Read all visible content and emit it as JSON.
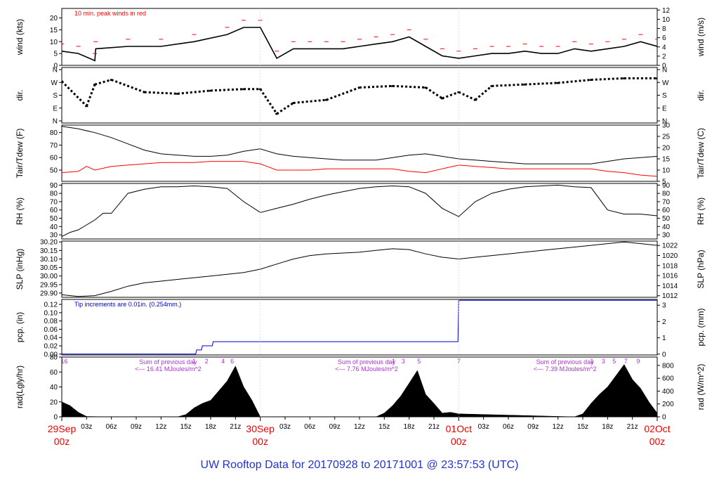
{
  "title": "UW Rooftop Data for 20170928  to  20171001 @ 23:57:53  (UTC)",
  "colors": {
    "frame": "#000000",
    "data": "#000000",
    "wind_peak": "#ff0000",
    "dewpoint": "#ff0000",
    "precip": "#0000cc",
    "radiation_labels": "#aa33cc",
    "date_labels": "#ee0000",
    "title": "#2233cc"
  },
  "time_axis": {
    "hour_ticks": [
      "03z",
      "06z",
      "09z",
      "12z",
      "15z",
      "18z",
      "21z"
    ],
    "days": [
      {
        "top": "29Sep",
        "bottom": "00z"
      },
      {
        "top": "30Sep",
        "bottom": "00z"
      },
      {
        "top": "01Oct",
        "bottom": "00z"
      },
      {
        "top": "02Oct",
        "bottom": "00z"
      }
    ]
  },
  "chart_data": [
    {
      "type": "line",
      "id": "wind",
      "ylabel_left": "wind (kts)",
      "ylabel_right": "wind (m/s)",
      "left_ticks": [
        "0",
        "5",
        "10",
        "15",
        "20"
      ],
      "right_ticks": [
        "0",
        "2",
        "4",
        "6",
        "8",
        "10",
        "12"
      ],
      "ylim": [
        0,
        24
      ],
      "annotation": "10 min. peak winds in red",
      "series": [
        {
          "name": "wind speed",
          "x_hours": [
            0,
            2,
            4,
            4.1,
            8,
            12,
            16,
            20,
            22,
            24,
            26,
            28,
            30,
            32,
            34,
            36,
            38,
            40,
            42,
            44,
            46,
            48,
            50,
            52,
            54,
            56,
            58,
            60,
            62,
            64,
            66,
            68,
            70,
            72
          ],
          "values": [
            6,
            5,
            2,
            7,
            8,
            8,
            10,
            13,
            16,
            16,
            3,
            7,
            7,
            7,
            7,
            8,
            9,
            10,
            12,
            8,
            4,
            3,
            4,
            5,
            5,
            6,
            5,
            5,
            7,
            6,
            7,
            8,
            10,
            8
          ]
        }
      ]
    },
    {
      "type": "scatter",
      "id": "dir",
      "ylabel_left": "dir.",
      "ylabel_right": "dir.",
      "left_ticks": [
        "N",
        "E",
        "S",
        "W",
        "N"
      ],
      "right_ticks": [
        "N",
        "E",
        "S",
        "W",
        "N"
      ],
      "ylim": [
        0,
        360
      ],
      "series": [
        {
          "name": "wind direction",
          "x_hours": [
            0,
            3,
            4,
            6,
            10,
            14,
            18,
            22,
            24,
            26,
            28,
            32,
            36,
            40,
            44,
            46,
            48,
            50,
            52,
            56,
            60,
            64,
            68,
            72
          ],
          "values": [
            270,
            110,
            250,
            280,
            200,
            190,
            210,
            220,
            220,
            60,
            130,
            150,
            230,
            240,
            230,
            160,
            200,
            150,
            240,
            250,
            260,
            280,
            290,
            290
          ]
        }
      ]
    },
    {
      "type": "line",
      "id": "temp",
      "ylabel_left": "Tair/Tdew (F)",
      "ylabel_right": "Tair/Tdew (C)",
      "left_ticks": [
        "50",
        "60",
        "70",
        "80"
      ],
      "right_ticks": [
        "5",
        "10",
        "15",
        "20",
        "25",
        "30"
      ],
      "ylim": [
        41,
        86
      ],
      "series": [
        {
          "name": "air temperature",
          "x_hours": [
            0,
            2,
            4,
            6,
            8,
            10,
            12,
            14,
            16,
            18,
            20,
            22,
            24,
            26,
            28,
            30,
            32,
            34,
            36,
            38,
            40,
            42,
            44,
            46,
            48,
            50,
            52,
            54,
            56,
            58,
            60,
            62,
            64,
            66,
            68,
            70,
            72
          ],
          "values": [
            85,
            83,
            80,
            76,
            71,
            66,
            63,
            62,
            61,
            61,
            62,
            65,
            67,
            63,
            61,
            60,
            59,
            58,
            58,
            58,
            60,
            62,
            63,
            61,
            59,
            58,
            57,
            56,
            55,
            55,
            55,
            55,
            55,
            57,
            59,
            60,
            61
          ]
        },
        {
          "name": "dew point",
          "x_hours": [
            0,
            2,
            3,
            4,
            6,
            8,
            10,
            12,
            14,
            16,
            18,
            20,
            22,
            24,
            26,
            28,
            30,
            32,
            34,
            36,
            38,
            40,
            42,
            44,
            46,
            48,
            50,
            52,
            54,
            56,
            58,
            60,
            62,
            64,
            66,
            68,
            70,
            72
          ],
          "values": [
            48,
            49,
            53,
            50,
            53,
            54,
            55,
            56,
            56,
            56,
            57,
            57,
            57,
            55,
            50,
            50,
            50,
            51,
            51,
            51,
            51,
            51,
            49,
            48,
            51,
            54,
            53,
            52,
            51,
            51,
            51,
            51,
            51,
            51,
            49,
            48,
            46,
            45
          ]
        }
      ]
    },
    {
      "type": "line",
      "id": "rh",
      "ylabel_left": "RH (%)",
      "ylabel_right": "RH (%)",
      "left_ticks": [
        "30",
        "40",
        "50",
        "60",
        "70",
        "80",
        "90"
      ],
      "right_ticks": [
        "30",
        "40",
        "50",
        "60",
        "70",
        "80",
        "90"
      ],
      "ylim": [
        25,
        92
      ],
      "series": [
        {
          "name": "relative humidity",
          "x_hours": [
            0,
            1,
            2,
            3,
            4,
            5,
            6,
            8,
            10,
            12,
            14,
            16,
            18,
            20,
            22,
            24,
            26,
            28,
            30,
            32,
            34,
            36,
            38,
            40,
            42,
            44,
            46,
            48,
            50,
            52,
            54,
            56,
            58,
            60,
            62,
            64,
            66,
            68,
            70,
            72
          ],
          "values": [
            28,
            33,
            36,
            42,
            48,
            56,
            56,
            80,
            85,
            88,
            88,
            89,
            88,
            86,
            70,
            57,
            62,
            67,
            73,
            78,
            82,
            86,
            88,
            89,
            88,
            80,
            62,
            52,
            70,
            80,
            85,
            88,
            89,
            90,
            88,
            87,
            60,
            55,
            55,
            53
          ]
        }
      ]
    },
    {
      "type": "line",
      "id": "slp",
      "ylabel_left": "SLP (inHg)",
      "ylabel_right": "SLP (hPa)",
      "left_ticks": [
        "29.90",
        "29.95",
        "30.00",
        "30.05",
        "30.10",
        "30.15",
        "30.20"
      ],
      "right_ticks": [
        "1012",
        "1014",
        "1016",
        "1018",
        "1020",
        "1022"
      ],
      "ylim": [
        29.875,
        30.205
      ],
      "series": [
        {
          "name": "sea level pressure",
          "x_hours": [
            0,
            2,
            4,
            6,
            8,
            10,
            12,
            14,
            16,
            18,
            20,
            22,
            24,
            26,
            28,
            30,
            32,
            34,
            36,
            38,
            40,
            42,
            44,
            46,
            48,
            50,
            52,
            54,
            56,
            58,
            60,
            62,
            64,
            66,
            68,
            70,
            72
          ],
          "values": [
            29.89,
            29.88,
            29.885,
            29.91,
            29.94,
            29.96,
            29.97,
            29.98,
            29.99,
            30.0,
            30.01,
            30.02,
            30.04,
            30.07,
            30.1,
            30.12,
            30.13,
            30.135,
            30.14,
            30.15,
            30.16,
            30.155,
            30.13,
            30.11,
            30.1,
            30.11,
            30.12,
            30.13,
            30.14,
            30.15,
            30.16,
            30.17,
            30.18,
            30.19,
            30.2,
            30.19,
            30.18
          ]
        }
      ]
    },
    {
      "type": "line",
      "id": "pcp",
      "ylabel_left": "pcp. (in)",
      "ylabel_right": "pcp. (mm)",
      "left_ticks": [
        "0.00",
        "0.02",
        "0.04",
        "0.06",
        "0.08",
        "0.10",
        "0.12"
      ],
      "right_ticks": [
        "0",
        "1",
        "2",
        "3"
      ],
      "ylim": [
        -0.002,
        0.132
      ],
      "annotation": "Tip increments are 0.01in. (0.254mm.)",
      "series": [
        {
          "name": "precipitation",
          "x_hours": [
            0,
            16.2,
            16.3,
            16.9,
            17.0,
            18.2,
            18.3,
            47.9,
            48.0,
            72
          ],
          "values": [
            0,
            0,
            0.01,
            0.01,
            0.02,
            0.02,
            0.03,
            0.03,
            0.13,
            0.13
          ]
        }
      ]
    },
    {
      "type": "area",
      "id": "rad",
      "ylabel_left": "rad(Lgly/hr)",
      "ylabel_right": "rad (W/m^2)",
      "left_ticks": [
        "0",
        "20",
        "40",
        "60",
        "80"
      ],
      "right_ticks": [
        "0",
        "200",
        "400",
        "600",
        "800"
      ],
      "ylim": [
        0,
        80
      ],
      "hour_marks": [
        {
          "day": 0,
          "labels": [
            {
              "h": 0.3,
              "t": "16"
            },
            {
              "h": 16,
              "t": "1"
            },
            {
              "h": 17.5,
              "t": "2"
            },
            {
              "h": 19.5,
              "t": "4"
            },
            {
              "h": 20.6,
              "t": "6"
            }
          ]
        },
        {
          "day": 1,
          "labels": [
            {
              "h": 40.1,
              "t": "1"
            },
            {
              "h": 41.3,
              "t": "3"
            },
            {
              "h": 43.2,
              "t": "5"
            },
            {
              "h": 48.0,
              "t": "7"
            }
          ]
        },
        {
          "day": 2,
          "labels": [
            {
              "h": 64.1,
              "t": "1"
            },
            {
              "h": 65.5,
              "t": "3"
            },
            {
              "h": 66.8,
              "t": "5"
            },
            {
              "h": 68.2,
              "t": "7"
            },
            {
              "h": 69.7,
              "t": "9"
            }
          ]
        }
      ],
      "day_sums": [
        {
          "x_hours": 12,
          "line1": "Sum of previous day",
          "line2": "<--- 16.41 MJoules/m^2"
        },
        {
          "x_hours": 36,
          "line1": "Sum of previous day",
          "line2": "<--- 7.76 MJoules/m^2"
        },
        {
          "x_hours": 60,
          "line1": "Sum of previous day",
          "line2": "<--- 7.39 MJoules/m^2"
        }
      ],
      "series": [
        {
          "name": "solar radiation",
          "x_hours": [
            0,
            1,
            2,
            3,
            6,
            14,
            15,
            16,
            17,
            18,
            19,
            20,
            21,
            22,
            23,
            24,
            38,
            39,
            40,
            41,
            42,
            43,
            44,
            45,
            46,
            47,
            48,
            62,
            63,
            64,
            65,
            66,
            67,
            68,
            69,
            70,
            71,
            72
          ],
          "values": [
            20,
            15,
            6,
            0.5,
            0,
            0,
            3,
            12,
            18,
            22,
            35,
            48,
            68,
            40,
            22,
            0,
            0,
            5,
            15,
            28,
            45,
            62,
            30,
            18,
            5,
            6,
            4,
            0,
            4,
            18,
            30,
            40,
            55,
            70,
            50,
            38,
            20,
            5
          ]
        }
      ]
    }
  ]
}
